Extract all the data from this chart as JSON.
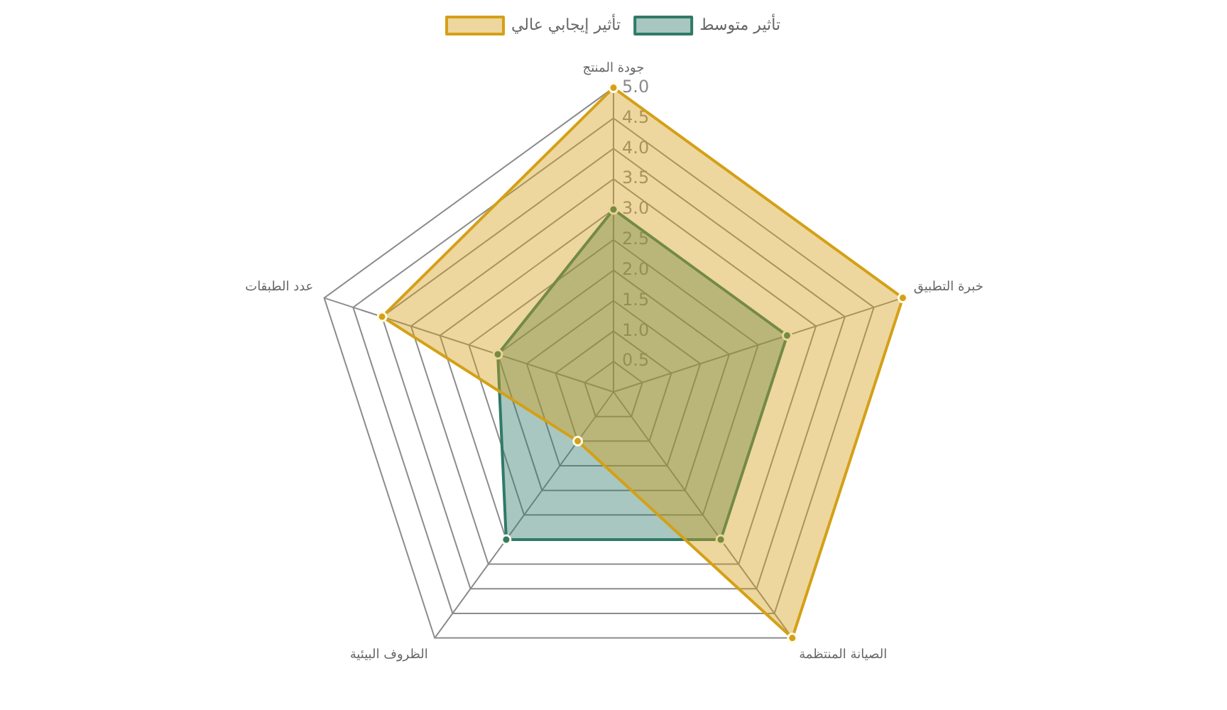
{
  "chart_data": {
    "type": "radar",
    "categories": [
      "جودة المنتج",
      "خبرة التطبيق",
      "الصيانة المنتظمة",
      "الظروف البيئية",
      "عدد الطبقات"
    ],
    "series": [
      {
        "name": "تأثير إيجابي عالي",
        "color": "#d4a017",
        "values": [
          5,
          5,
          5,
          1,
          4
        ]
      },
      {
        "name": "تأثير متوسط",
        "color": "#2f7a68",
        "values": [
          3,
          3,
          3,
          3,
          2
        ]
      }
    ],
    "ylim": [
      0,
      5
    ],
    "yticks": [
      0.5,
      {
        "value": 1,
        "label": "1.0"
      },
      1.5,
      {
        "value": 2,
        "label": "2.0"
      },
      2.5,
      {
        "value": 3,
        "label": "3.0"
      },
      3.5,
      {
        "value": 4,
        "label": "4.0"
      },
      4.5,
      {
        "value": 5,
        "label": "5.0"
      }
    ],
    "grid": true,
    "legend": "top",
    "marker": "circle"
  }
}
